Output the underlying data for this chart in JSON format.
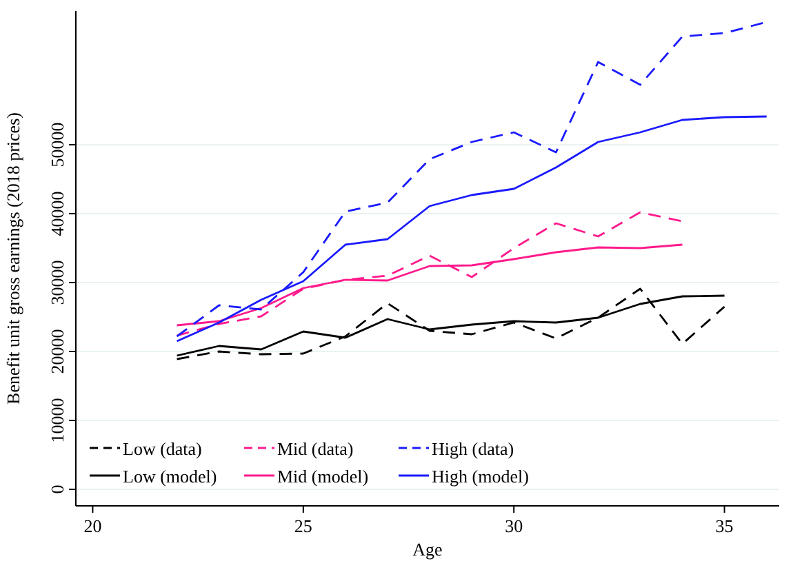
{
  "chart_data": {
    "type": "line",
    "xlabel": "Age",
    "ylabel": "Benefit unit gross earnings (2018 prices)",
    "xlim": [
      19.6,
      36.3
    ],
    "ylim": [
      -2400,
      69400
    ],
    "xticks": [
      20,
      25,
      30,
      35
    ],
    "yticks": [
      0,
      10000,
      20000,
      30000,
      40000,
      50000
    ],
    "grid": "y",
    "legend": "bottom left",
    "series": [
      {
        "name": "Low (data)",
        "color": "#000000",
        "line_style": "dashed",
        "x": [
          22,
          23,
          24,
          25,
          26,
          27,
          28,
          29,
          30,
          31,
          32,
          33,
          34,
          35
        ],
        "values": [
          18900,
          20000,
          19600,
          19700,
          22200,
          27000,
          23000,
          22500,
          24200,
          21900,
          24900,
          29100,
          21100,
          26500
        ]
      },
      {
        "name": "Low (model)",
        "color": "#000000",
        "line_style": "solid",
        "x": [
          22,
          23,
          24,
          25,
          26,
          27,
          28,
          29,
          30,
          31,
          32,
          33,
          34,
          35
        ],
        "values": [
          19400,
          20800,
          20300,
          22900,
          22000,
          24700,
          23200,
          23900,
          24400,
          24200,
          24900,
          26900,
          28000,
          28100
        ]
      },
      {
        "name": "Mid (data)",
        "color": "#ff1a8c",
        "line_style": "dashed",
        "x": [
          22,
          23,
          24,
          25,
          26,
          27,
          28,
          29,
          30,
          31,
          32,
          33,
          34
        ],
        "values": [
          22300,
          24000,
          25100,
          29100,
          30400,
          31000,
          33900,
          30800,
          35000,
          38600,
          36700,
          40200,
          38900
        ]
      },
      {
        "name": "Mid (model)",
        "color": "#ff1a8c",
        "line_style": "solid",
        "x": [
          22,
          23,
          24,
          25,
          26,
          27,
          28,
          29,
          30,
          31,
          32,
          33,
          34
        ],
        "values": [
          23800,
          24400,
          26300,
          29200,
          30400,
          30300,
          32400,
          32500,
          33400,
          34400,
          35100,
          35000,
          35500
        ]
      },
      {
        "name": "High (data)",
        "color": "#1a1aff",
        "line_style": "dashed",
        "x": [
          22,
          23,
          24,
          25,
          26,
          27,
          28,
          29,
          30,
          31,
          32,
          33,
          34,
          35,
          36
        ],
        "values": [
          22200,
          26700,
          26100,
          31500,
          40300,
          41600,
          47900,
          50400,
          51800,
          48900,
          62000,
          58700,
          65700,
          66200,
          67800
        ]
      },
      {
        "name": "High (model)",
        "color": "#1a1aff",
        "line_style": "solid",
        "x": [
          22,
          23,
          24,
          25,
          26,
          27,
          28,
          29,
          30,
          31,
          32,
          33,
          34,
          35,
          36
        ],
        "values": [
          21500,
          24200,
          27500,
          30200,
          35500,
          36300,
          41100,
          42700,
          43600,
          46700,
          50400,
          51800,
          53600,
          54000,
          54100
        ]
      }
    ]
  }
}
